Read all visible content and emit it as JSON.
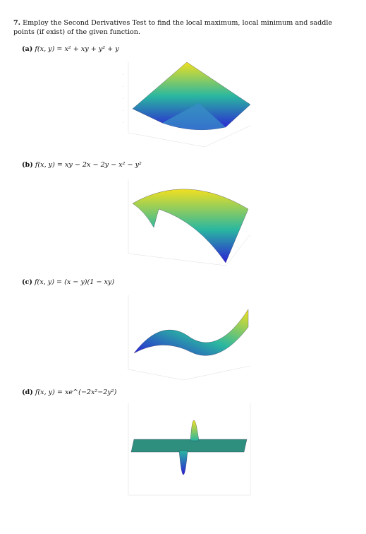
{
  "problem": {
    "number": "7.",
    "text": "Employ the Second Derivatives Test to find the local maximum, local minimum and saddle points (if exist) of the given function."
  },
  "parts": [
    {
      "label": "(a)",
      "equation": "f(x, y) = x² + xy + y² + y"
    },
    {
      "label": "(b)",
      "equation": "f(x, y) = xy − 2x − 2y − x² − y²"
    },
    {
      "label": "(c)",
      "equation": "f(x, y) = (x − y)(1 − xy)"
    },
    {
      "label": "(d)",
      "equation": "f(x, y) = xe^(−2x²−2y²)"
    }
  ],
  "colors": {
    "surface_low": "#2b1fd6",
    "surface_mid": "#2ab7a0",
    "surface_high": "#f0e020",
    "plane": "#2f8f7f"
  }
}
